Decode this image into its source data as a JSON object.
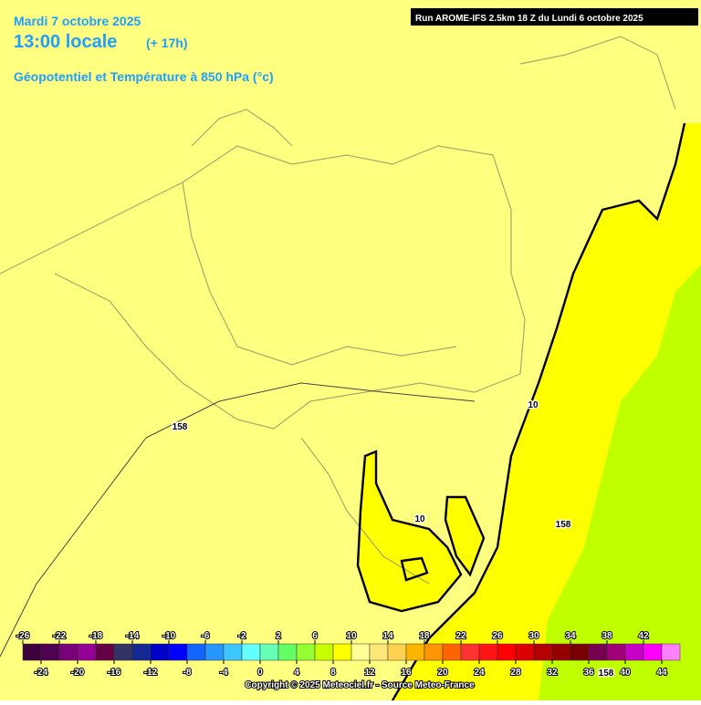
{
  "header": {
    "date": "Mardi 7 octobre 2025",
    "time": "13:00 locale",
    "offset": "(+ 17h)",
    "field": "Géopotentiel et Température à 850 hPa (°c)",
    "run": "Run AROME-IFS 2.5km 18 Z du Lundi 6 octobre 2025"
  },
  "contour_labels": [
    10,
    10,
    158,
    158,
    158
  ],
  "colorbar": {
    "ticks": [
      -26,
      -24,
      -22,
      -20,
      -18,
      -16,
      -14,
      -12,
      -10,
      -8,
      -6,
      -4,
      -2,
      0,
      2,
      4,
      6,
      8,
      10,
      12,
      14,
      16,
      18,
      20,
      22,
      24,
      26,
      28,
      30,
      32,
      34,
      36,
      38,
      40,
      42,
      44
    ],
    "colors": [
      "#3c003c",
      "#500050",
      "#780078",
      "#960096",
      "#640046",
      "#323264",
      "#142896",
      "#0000c8",
      "#0000ff",
      "#1464ff",
      "#2896ff",
      "#3cc8ff",
      "#64ffff",
      "#64ffb4",
      "#64ff64",
      "#96ff32",
      "#c8ff00",
      "#ffff00",
      "#ffff96",
      "#ffe678",
      "#ffd250",
      "#ffb400",
      "#ff9600",
      "#ff6400",
      "#ff3232",
      "#ff1414",
      "#ff0000",
      "#dc0000",
      "#b40000",
      "#960000",
      "#780000",
      "#780050",
      "#a00078",
      "#c800c8",
      "#ff00ff",
      "#ff80ff"
    ]
  },
  "footer": "Copyright © 2025 Meteociel.fr - Source Meteo-France"
}
